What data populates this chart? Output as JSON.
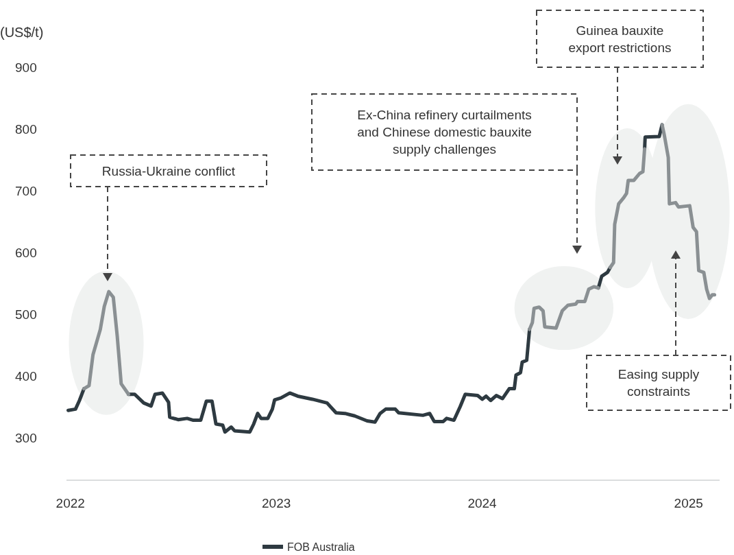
{
  "chart_data": {
    "type": "line",
    "ylabel": "(US$/t)",
    "x": [
      "2021-12-28",
      "2022-01-10",
      "2022-01-17",
      "2022-01-25",
      "2022-02-03",
      "2022-02-10",
      "2022-02-23",
      "2022-03-02",
      "2022-03-10",
      "2022-03-18",
      "2022-03-25",
      "2022-04-01",
      "2022-04-14",
      "2022-04-25",
      "2022-05-11",
      "2022-05-24",
      "2022-05-31",
      "2022-06-13",
      "2022-06-24",
      "2022-06-26",
      "2022-07-11",
      "2022-07-27",
      "2022-08-07",
      "2022-08-20",
      "2022-08-30",
      "2022-09-09",
      "2022-09-16",
      "2022-09-28",
      "2022-10-02",
      "2022-10-13",
      "2022-10-19",
      "2022-11-15",
      "2022-11-22",
      "2022-11-29",
      "2022-12-05",
      "2022-12-17",
      "2022-12-25",
      "2022-12-29",
      "2023-01-09",
      "2023-01-25",
      "2023-02-08",
      "2023-03-06",
      "2023-04-01",
      "2023-04-17",
      "2023-05-03",
      "2023-05-20",
      "2023-06-11",
      "2023-06-25",
      "2023-07-04",
      "2023-07-14",
      "2023-07-31",
      "2023-08-06",
      "2023-09-18",
      "2023-09-30",
      "2023-10-08",
      "2023-10-24",
      "2023-10-30",
      "2023-11-12",
      "2023-11-23",
      "2023-12-02",
      "2023-12-24",
      "2024-01-01",
      "2024-01-08",
      "2024-01-16",
      "2024-01-26",
      "2024-02-06",
      "2024-02-18",
      "2024-02-27",
      "2024-03-01",
      "2024-03-09",
      "2024-03-12",
      "2024-03-20",
      "2024-03-25",
      "2024-03-30",
      "2024-04-02",
      "2024-04-11",
      "2024-04-18",
      "2024-04-21",
      "2024-05-11",
      "2024-05-22",
      "2024-06-01",
      "2024-06-15",
      "2024-06-18",
      "2024-07-01",
      "2024-07-08",
      "2024-07-17",
      "2024-07-25",
      "2024-07-31",
      "2024-08-10",
      "2024-08-15",
      "2024-08-21",
      "2024-08-23",
      "2024-08-30",
      "2024-09-08",
      "2024-09-13",
      "2024-09-16",
      "2024-09-26",
      "2024-10-06",
      "2024-10-12",
      "2024-10-15",
      "2024-10-16",
      "2024-11-10",
      "2024-11-15",
      "2024-11-19",
      "2024-11-26",
      "2024-11-28",
      "2024-12-09",
      "2024-12-14",
      "2025-01-03",
      "2025-01-09",
      "2025-01-15",
      "2025-01-19",
      "2025-01-28",
      "2025-02-02",
      "2025-02-07",
      "2025-02-12",
      "2025-02-16"
    ],
    "series": [
      {
        "name": "FOB Australia",
        "color": "#2e3a41",
        "values": [
          345,
          347,
          361,
          380,
          null,
          null,
          null,
          null,
          null,
          null,
          null,
          null,
          371,
          371,
          357,
          352,
          371,
          373,
          358,
          334,
          330,
          332,
          329,
          329,
          360,
          360,
          323,
          321,
          310,
          318,
          312,
          310,
          323,
          340,
          332,
          332,
          347,
          362,
          365,
          373,
          368,
          363,
          357,
          341,
          340,
          336,
          328,
          326,
          340,
          347,
          347,
          341,
          337,
          340,
          327,
          327,
          332,
          329,
          351,
          371,
          369,
          363,
          368,
          361,
          369,
          364,
          380,
          380,
          402,
          406,
          423,
          426,
          476,
          null,
          null,
          null,
          null,
          null,
          null,
          null,
          null,
          null,
          null,
          null,
          null,
          null,
          543,
          562,
          568,
          576,
          null,
          null,
          null,
          null,
          null,
          null,
          null,
          null,
          null,
          768,
          787,
          788,
          807,
          null,
          null,
          null,
          null,
          null,
          null,
          null,
          null,
          null,
          null,
          null,
          null,
          null,
          null
        ]
      },
      {
        "color": "#8a9093",
        "values": [
          null,
          null,
          null,
          380,
          385,
          435,
          476,
          513,
          537,
          528,
          465,
          388,
          371,
          null,
          null,
          null,
          null,
          null,
          null,
          null,
          null,
          null,
          null,
          null,
          null,
          null,
          null,
          null,
          null,
          null,
          null,
          null,
          null,
          null,
          null,
          null,
          null,
          null,
          null,
          null,
          null,
          null,
          null,
          null,
          null,
          null,
          null,
          null,
          null,
          null,
          null,
          null,
          null,
          null,
          null,
          null,
          null,
          null,
          null,
          null,
          null,
          null,
          null,
          null,
          null,
          null,
          null,
          null,
          null,
          null,
          null,
          null,
          476,
          487,
          510,
          512,
          506,
          480,
          478,
          506,
          515,
          517,
          521,
          521,
          541,
          545,
          543,
          null,
          null,
          576,
          584,
          646,
          679,
          689,
          696,
          717,
          717,
          728,
          731,
          768,
          null,
          null,
          807,
          790,
          754,
          679,
          681,
          674,
          676,
          641,
          634,
          571,
          568,
          541,
          526,
          532,
          532
        ]
      }
    ],
    "xlim": [
      "2021-12-25",
      "2025-02-25"
    ],
    "xticks": [
      "2022",
      "2023",
      "2024",
      "2025"
    ],
    "ylim": [
      232,
      900
    ],
    "yticks": [
      300,
      400,
      500,
      600,
      700,
      800,
      900
    ],
    "grid": false,
    "legend": "bottom",
    "line_style": "solid",
    "marker": "none",
    "annotations": [
      "Russia-Ukraine conflict",
      "Ex-China refinery curtailments\nand Chinese domestic bauxite\nsupply challenges",
      "Guinea bauxite\nexport restrictions",
      "Easing supply\nconstraints"
    ]
  }
}
